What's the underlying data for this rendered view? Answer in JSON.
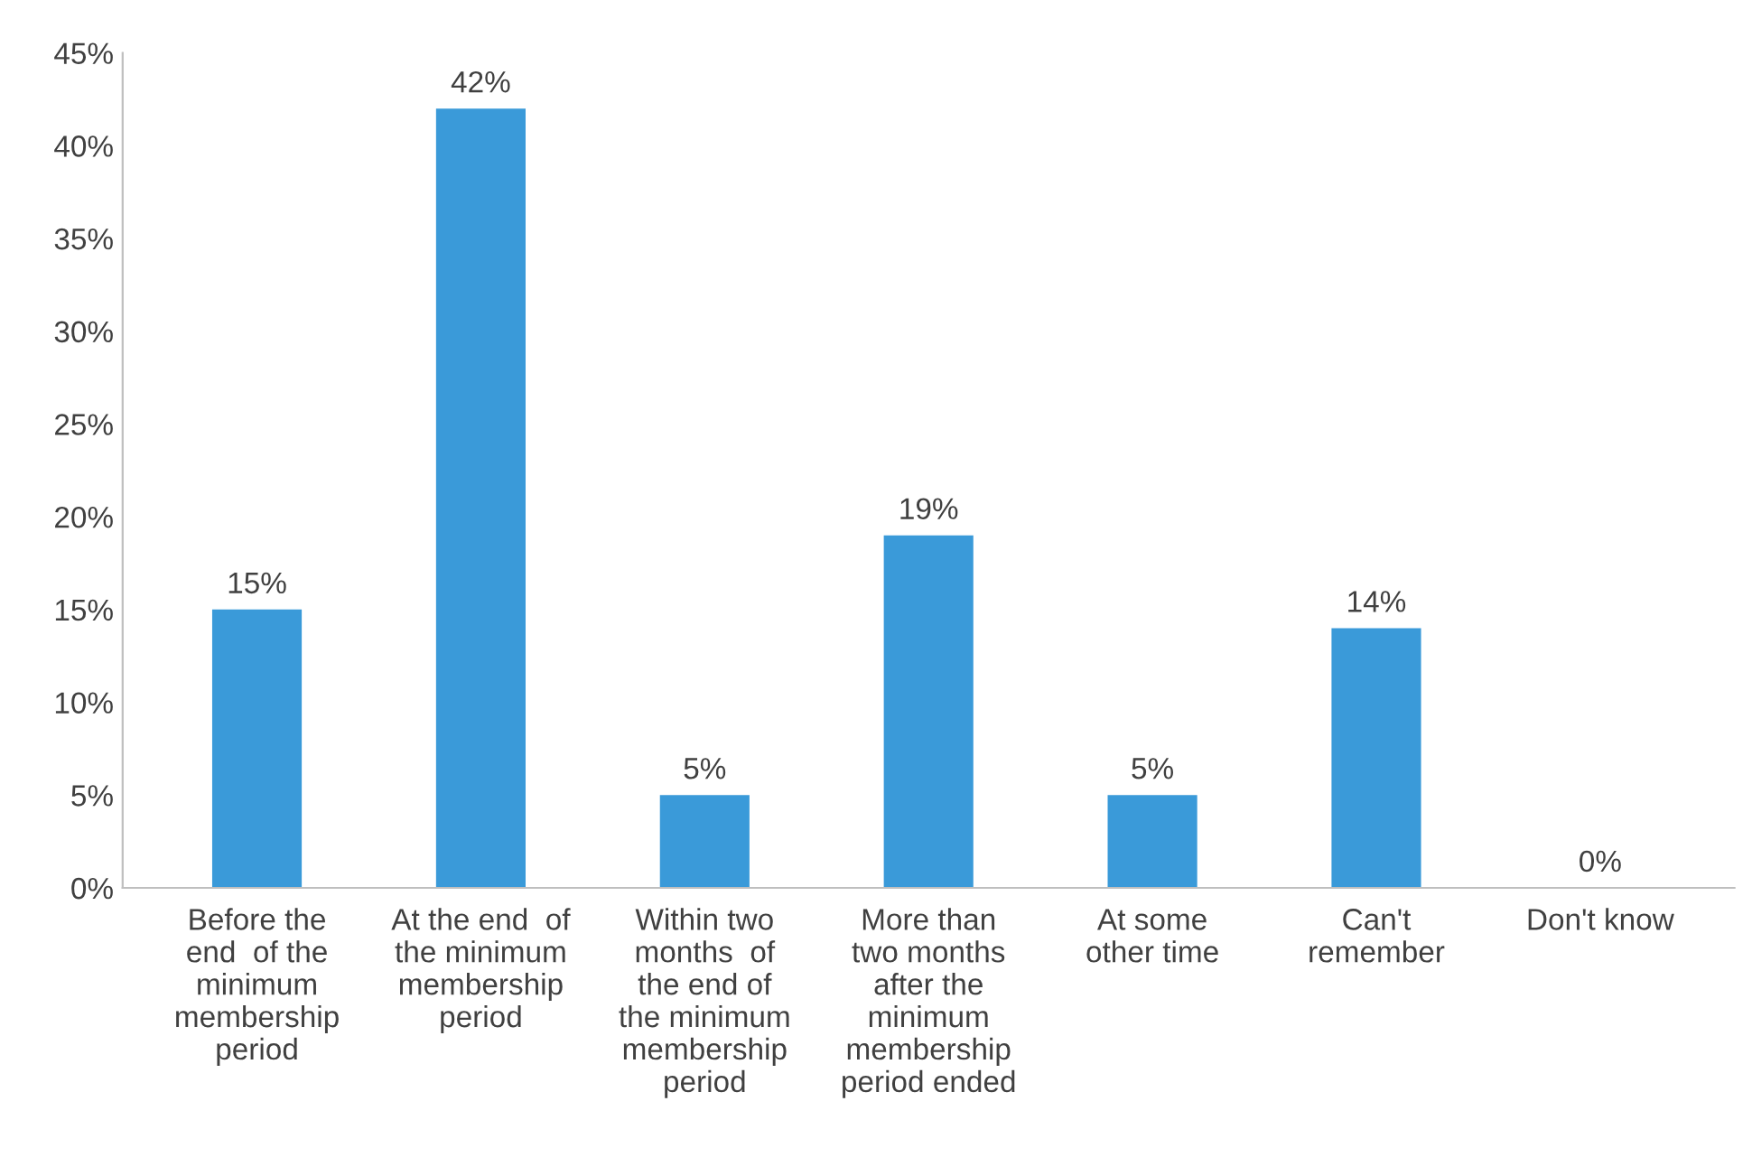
{
  "chart_data": {
    "type": "bar",
    "categories": [
      "Before the\nend  of the\nminimum\nmembership\nperiod",
      "At the end  of\nthe minimum\nmembership\nperiod",
      "Within two\nmonths  of\nthe end of\nthe minimum\nmembership\nperiod",
      "More than\ntwo months\nafter the\nminimum\nmembership\nperiod ended",
      "At some\nother time",
      "Can't\nremember",
      "Don't know"
    ],
    "values": [
      15,
      42,
      5,
      19,
      5,
      14,
      0
    ],
    "value_labels": [
      "15%",
      "42%",
      "5%",
      "19%",
      "5%",
      "14%",
      "0%"
    ],
    "color": "#3a9ad9",
    "ylim": [
      0,
      45
    ],
    "yticks": [
      {
        "value": 0,
        "label": "0%"
      },
      {
        "value": 5,
        "label": "5%"
      },
      {
        "value": 10,
        "label": "10%"
      },
      {
        "value": 15,
        "label": "15%"
      },
      {
        "value": 20,
        "label": "20%"
      },
      {
        "value": 25,
        "label": "25%"
      },
      {
        "value": 30,
        "label": "30%"
      },
      {
        "value": 35,
        "label": "35%"
      },
      {
        "value": 40,
        "label": "40%"
      },
      {
        "value": 45,
        "label": "45%"
      }
    ],
    "grid": false,
    "legend": false
  }
}
